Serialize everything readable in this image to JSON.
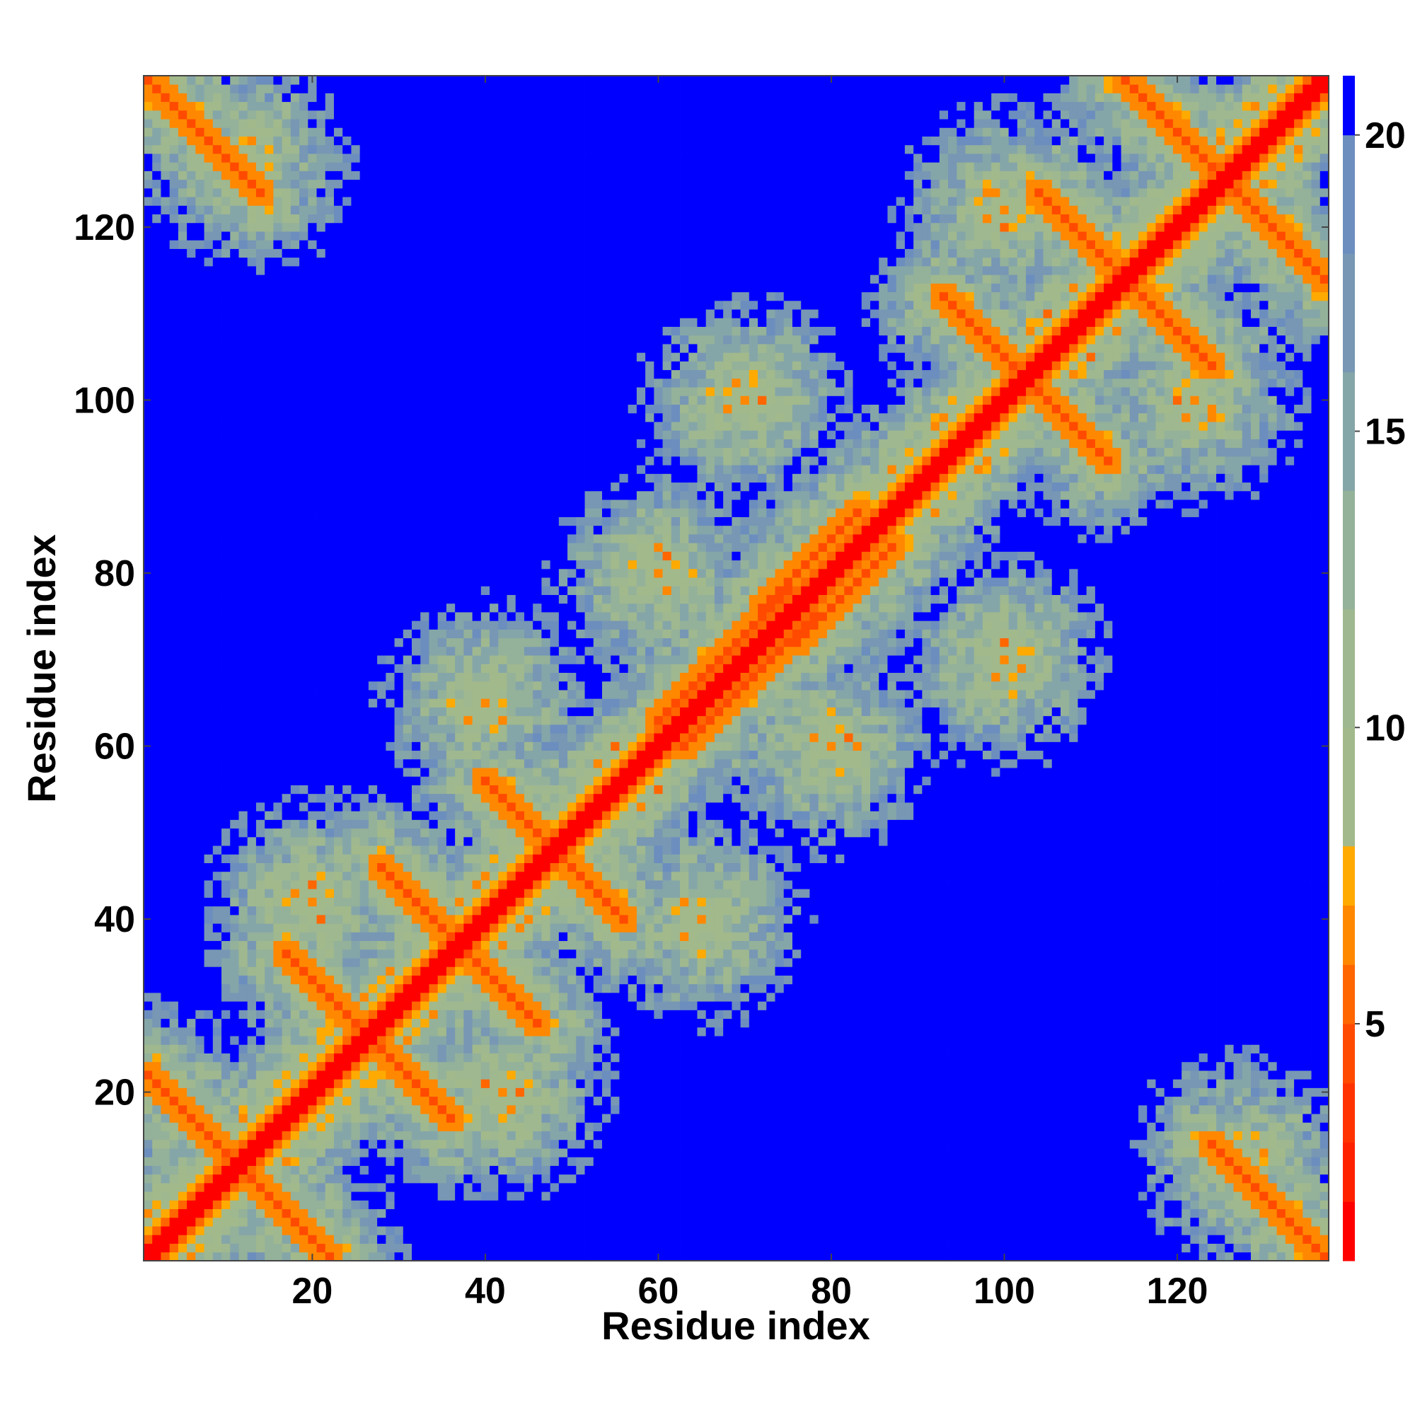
{
  "chart_data": {
    "type": "heatmap",
    "title": "",
    "xlabel": "Residue index",
    "ylabel": "Residue index",
    "n_residues": 137,
    "xlim": [
      1,
      137
    ],
    "ylim": [
      1,
      137
    ],
    "x_ticks": [
      20,
      40,
      60,
      80,
      100,
      120
    ],
    "y_ticks": [
      20,
      40,
      60,
      80,
      100,
      120
    ],
    "colorbar": {
      "ticks": [
        5,
        10,
        15,
        20
      ],
      "range": [
        1,
        21
      ],
      "levels": [
        {
          "max": 2,
          "color": "#ff0000"
        },
        {
          "max": 3,
          "color": "#ff2200"
        },
        {
          "max": 4,
          "color": "#ff3300"
        },
        {
          "max": 5,
          "color": "#ff4a00"
        },
        {
          "max": 6,
          "color": "#ff6600"
        },
        {
          "max": 7,
          "color": "#ff8800"
        },
        {
          "max": 8,
          "color": "#ffaa00"
        },
        {
          "max": 10,
          "color": "#a2b98b"
        },
        {
          "max": 12,
          "color": "#9fb88f"
        },
        {
          "max": 14,
          "color": "#94b19a"
        },
        {
          "max": 16,
          "color": "#85a6a8"
        },
        {
          "max": 18,
          "color": "#7797b4"
        },
        {
          "max": 20,
          "color": "#6b8ebf"
        },
        {
          "max": 21,
          "color": "#0000ff"
        }
      ]
    },
    "contact_features": [
      {
        "kind": "anti",
        "i": 1,
        "j": 22,
        "len": 20
      },
      {
        "kind": "anti",
        "i": 17,
        "j": 36,
        "len": 19
      },
      {
        "kind": "anti",
        "i": 28,
        "j": 46,
        "len": 18
      },
      {
        "kind": "anti",
        "i": 40,
        "j": 56,
        "len": 15
      },
      {
        "kind": "anti",
        "i": 93,
        "j": 112,
        "len": 19
      },
      {
        "kind": "anti",
        "i": 104,
        "j": 124,
        "len": 20
      },
      {
        "kind": "anti",
        "i": 114,
        "j": 137,
        "len": 23
      },
      {
        "kind": "anti",
        "i": 1,
        "j": 137,
        "len": 14
      },
      {
        "kind": "parallel",
        "i": 60,
        "j": 63,
        "len": 16
      },
      {
        "kind": "parallel",
        "i": 72,
        "j": 76,
        "len": 12
      }
    ]
  }
}
